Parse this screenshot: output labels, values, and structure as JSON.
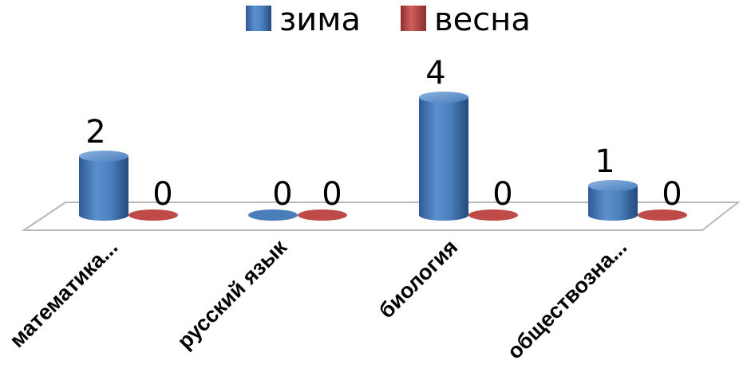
{
  "chart_data": {
    "type": "bar",
    "categories": [
      "математика...",
      "русский язык",
      "биология",
      "обществозна..."
    ],
    "series": [
      {
        "name": "зима",
        "values": [
          2,
          0,
          4,
          1
        ]
      },
      {
        "name": "весна",
        "values": [
          0,
          0,
          0,
          0
        ]
      }
    ],
    "title": "",
    "xlabel": "",
    "ylabel": "",
    "ylim": [
      0,
      4
    ],
    "legend": "top-center",
    "grid": false,
    "colors": {
      "series_0": "#4a7ebb",
      "series_1": "#be4b48",
      "floor": "#ffffff",
      "floor_edge": "#b8b8b8"
    }
  }
}
